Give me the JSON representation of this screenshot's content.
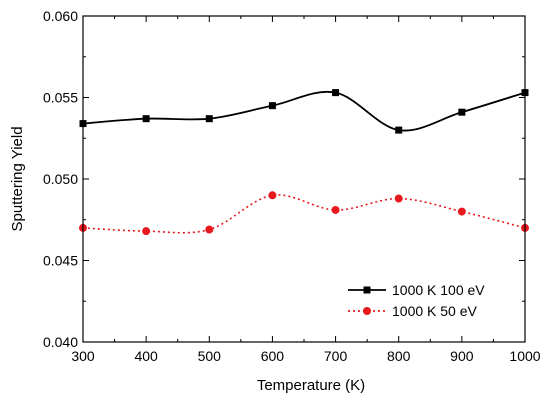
{
  "chart_data": {
    "type": "line",
    "xlabel": "Temperature (K)",
    "ylabel": "Sputtering Yield",
    "xlim": [
      300,
      1000
    ],
    "ylim": [
      0.04,
      0.06
    ],
    "x_ticks": [
      "300",
      "400",
      "500",
      "600",
      "700",
      "800",
      "900",
      "1000"
    ],
    "y_ticks": [
      "0.040",
      "0.045",
      "0.050",
      "0.055",
      "0.060"
    ],
    "x_tick_values": [
      300,
      400,
      500,
      600,
      700,
      800,
      900,
      1000
    ],
    "y_tick_values": [
      0.04,
      0.045,
      0.05,
      0.055,
      0.06
    ],
    "grid": false,
    "legend_position": "bottom-right",
    "series": [
      {
        "name": "1000 K 100 eV",
        "marker": "square",
        "line_style": "solid",
        "color": "#000000",
        "x": [
          300,
          400,
          500,
          600,
          700,
          800,
          900,
          1000
        ],
        "y": [
          0.0534,
          0.0537,
          0.0537,
          0.0545,
          0.0553,
          0.053,
          0.0541,
          0.0553
        ]
      },
      {
        "name": "1000 K 50 eV",
        "marker": "circle",
        "line_style": "dotted",
        "color": "#e8191e",
        "x": [
          300,
          400,
          500,
          600,
          700,
          800,
          900,
          1000
        ],
        "y": [
          0.047,
          0.0468,
          0.0469,
          0.049,
          0.0481,
          0.0488,
          0.048,
          0.047
        ]
      }
    ]
  }
}
